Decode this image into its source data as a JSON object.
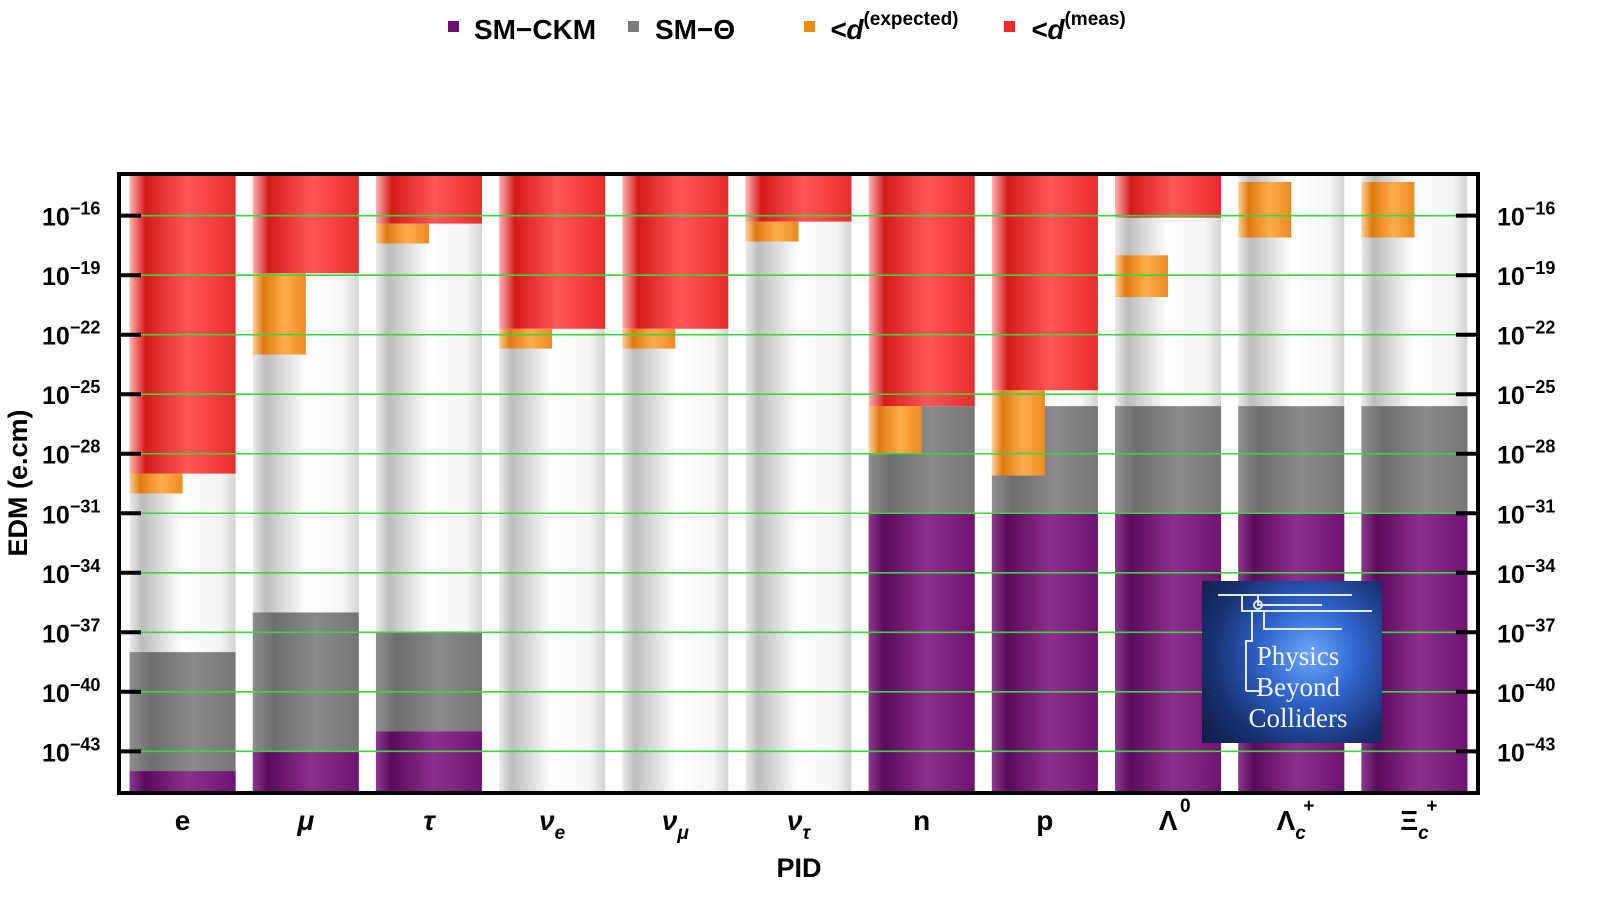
{
  "chart_data": {
    "type": "bar",
    "title": "",
    "xlabel": "PID",
    "ylabel": "EDM (e.cm)",
    "yscale": "log10",
    "ylim_exponent": [
      -45,
      -14
    ],
    "y_ticks": [
      {
        "base": "10",
        "exp": "−16",
        "value_exp": -16
      },
      {
        "base": "10",
        "exp": "−19",
        "value_exp": -19
      },
      {
        "base": "10",
        "exp": "−22",
        "value_exp": -22
      },
      {
        "base": "10",
        "exp": "−25",
        "value_exp": -25
      },
      {
        "base": "10",
        "exp": "−28",
        "value_exp": -28
      },
      {
        "base": "10",
        "exp": "−31",
        "value_exp": -31
      },
      {
        "base": "10",
        "exp": "−34",
        "value_exp": -34
      },
      {
        "base": "10",
        "exp": "−37",
        "value_exp": -37
      },
      {
        "base": "10",
        "exp": "−40",
        "value_exp": -40
      },
      {
        "base": "10",
        "exp": "−43",
        "value_exp": -43
      }
    ],
    "categories": [
      {
        "name": "e",
        "sym": "e",
        "sub": "",
        "sup": "",
        "italic": false
      },
      {
        "name": "mu",
        "sym": "μ",
        "sub": "",
        "sup": "",
        "italic": true
      },
      {
        "name": "tau",
        "sym": "τ",
        "sub": "",
        "sup": "",
        "italic": true
      },
      {
        "name": "nu-e",
        "sym": "ν",
        "sub": "e",
        "sup": "",
        "italic": true
      },
      {
        "name": "nu-mu",
        "sym": "ν",
        "sub": "μ",
        "sup": "",
        "italic": true
      },
      {
        "name": "nu-tau",
        "sym": "ν",
        "sub": "τ",
        "sup": "",
        "italic": true
      },
      {
        "name": "n",
        "sym": "n",
        "sub": "",
        "sup": "",
        "italic": false
      },
      {
        "name": "p",
        "sym": "p",
        "sub": "",
        "sup": "",
        "italic": false
      },
      {
        "name": "lambda-0",
        "sym": "Λ",
        "sub": "",
        "sup": "0",
        "italic": false
      },
      {
        "name": "lambda-c-plus",
        "sym": "Λ",
        "sub": "c",
        "sup": "+",
        "italic": false
      },
      {
        "name": "xi-c-plus",
        "sym": "Ξ",
        "sub": "c",
        "sup": "+",
        "italic": false
      }
    ],
    "series": [
      {
        "name": "SM−CKM",
        "key": "ckm",
        "color": "#6d0f6e",
        "values_log10": [
          -44.0,
          -43.0,
          -42.0,
          null,
          null,
          null,
          -31.0,
          -31.0,
          -31.0,
          -31.0,
          -31.0
        ]
      },
      {
        "name": "SM−Θ",
        "key": "theta",
        "color": "#7b7b7b",
        "values_log10": [
          -38.0,
          -36.0,
          -37.0,
          null,
          null,
          null,
          -25.6,
          -25.6,
          -25.6,
          -25.6,
          -25.6
        ]
      },
      {
        "name_prefix": "<d",
        "name_sup": "(expected)",
        "key": "expected",
        "color": "#f08a1c",
        "ranges_log10": [
          [
            -30.0,
            -29.0
          ],
          [
            -23.0,
            -18.9
          ],
          [
            -17.4,
            -16.4
          ],
          [
            -22.7,
            -21.7
          ],
          [
            -22.7,
            -21.7
          ],
          [
            -17.3,
            -16.3
          ],
          [
            -28.0,
            -25.6
          ],
          [
            -29.1,
            -24.8
          ],
          [
            -20.1,
            -18.0
          ],
          [
            -17.1,
            -14.3
          ],
          [
            -17.1,
            -14.3
          ]
        ]
      },
      {
        "name_prefix": "<d",
        "name_sup": "(meas)",
        "key": "measured",
        "color": "#ee2b2b",
        "values_log10": [
          -29.0,
          -18.9,
          -16.4,
          -21.7,
          -21.7,
          -16.3,
          -25.6,
          -24.8,
          -16.1,
          null,
          null
        ]
      }
    ]
  },
  "logo": {
    "lines": [
      "Physics",
      "Beyond",
      "Colliders"
    ]
  }
}
